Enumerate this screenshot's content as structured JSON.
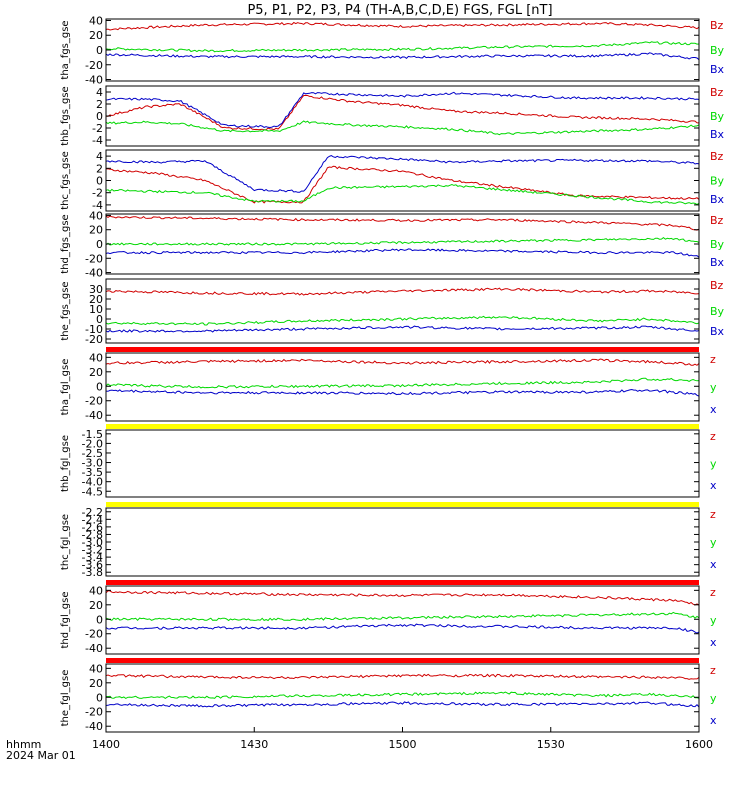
{
  "title": "P5, P1, P2, P3, P4 (TH-A,B,C,D,E) FGS, FGL [nT]",
  "footer": {
    "time_label": "hhmm",
    "date_label": "2024 Mar 01"
  },
  "colors": {
    "z": "#d00000",
    "y": "#00d800",
    "x": "#0000c8",
    "flag_red": "#ff0000",
    "flag_yellow": "#ffff00"
  },
  "chart_data": {
    "type": "line",
    "xaxis": {
      "unit": "hhmm",
      "range": [
        "1400",
        "1600"
      ],
      "ticks": [
        "1400",
        "1430",
        "1500",
        "1530",
        "1600"
      ]
    },
    "panels": [
      {
        "ylabel": "tha_fgs_gse",
        "ylim": [
          -42,
          42
        ],
        "ticks": [
          40,
          20,
          0,
          -20,
          -40
        ],
        "tick_labels": [
          "40",
          "20",
          "0",
          "-20",
          "-40"
        ],
        "legend": [
          "Bz",
          "By",
          "Bx"
        ],
        "flag": "none",
        "series": [
          {
            "name": "Bz",
            "level": 33,
            "noise": 1.5,
            "x": [
              0,
              20,
              40,
              60,
              80,
              100,
              110,
              120
            ],
            "y": [
              28,
              34,
              36,
              32,
              34,
              36,
              34,
              30
            ]
          },
          {
            "name": "By",
            "level": 2,
            "noise": 1.5,
            "x": [
              0,
              20,
              40,
              60,
              80,
              100,
              110,
              120
            ],
            "y": [
              2,
              -1,
              0,
              1,
              4,
              6,
              10,
              8
            ]
          },
          {
            "name": "Bx",
            "level": -8,
            "noise": 1.5,
            "x": [
              0,
              20,
              40,
              60,
              80,
              100,
              110,
              120
            ],
            "y": [
              -6,
              -9,
              -9,
              -10,
              -8,
              -8,
              -5,
              -12
            ]
          }
        ]
      },
      {
        "ylabel": "thb_fgs_gse",
        "ylim": [
          -5,
          5
        ],
        "ticks": [
          4,
          2,
          0,
          -2,
          -4
        ],
        "tick_labels": [
          "4",
          "2",
          "0",
          "-2",
          "-4"
        ],
        "legend": [
          "Bz",
          "By",
          "Bx"
        ],
        "flag": "none",
        "series": [
          {
            "name": "Bz",
            "x": [
              0,
              8,
              15,
              24,
              35,
              40,
              50,
              60,
              70,
              80,
              95,
              110,
              120
            ],
            "y": [
              0,
              1.5,
              2.0,
              -2.0,
              -2.2,
              3.4,
              2.4,
              1.8,
              0.8,
              0.5,
              -0.2,
              -0.5,
              -1.0
            ]
          },
          {
            "name": "By",
            "x": [
              0,
              8,
              15,
              24,
              35,
              40,
              50,
              60,
              70,
              80,
              95,
              110,
              120
            ],
            "y": [
              -1.2,
              -1.0,
              -1.3,
              -2.5,
              -2.5,
              -1.0,
              -1.5,
              -1.8,
              -2.2,
              -3.0,
              -2.6,
              -2.2,
              -1.6
            ]
          },
          {
            "name": "Bx",
            "x": [
              0,
              8,
              15,
              24,
              35,
              40,
              50,
              60,
              70,
              80,
              95,
              110,
              120
            ],
            "y": [
              2.8,
              2.8,
              2.5,
              -1.6,
              -1.8,
              3.8,
              3.6,
              3.3,
              3.8,
              3.5,
              3.0,
              3.0,
              2.8
            ]
          }
        ]
      },
      {
        "ylabel": "thc_fgs_gse",
        "ylim": [
          -5,
          5
        ],
        "ticks": [
          4,
          2,
          0,
          -2,
          -4
        ],
        "tick_labels": [
          "4",
          "2",
          "0",
          "-2",
          "-4"
        ],
        "legend": [
          "Bz",
          "By",
          "Bx"
        ],
        "flag": "none",
        "series": [
          {
            "name": "Bz",
            "x": [
              0,
              10,
              20,
              30,
              40,
              45,
              60,
              70,
              80,
              95,
              110,
              120
            ],
            "y": [
              1.8,
              1.2,
              0.0,
              -3.5,
              -3.5,
              2.2,
              1.5,
              0.0,
              -1.0,
              -2.5,
              -2.8,
              -3.0
            ]
          },
          {
            "name": "By",
            "x": [
              0,
              10,
              20,
              30,
              40,
              45,
              60,
              70,
              80,
              95,
              110,
              120
            ],
            "y": [
              -1.6,
              -1.8,
              -2.0,
              -3.4,
              -3.4,
              -1.2,
              -1.0,
              -0.8,
              -1.5,
              -2.5,
              -3.5,
              -3.8
            ]
          },
          {
            "name": "Bx",
            "x": [
              0,
              10,
              20,
              30,
              40,
              45,
              60,
              70,
              80,
              95,
              110,
              120
            ],
            "y": [
              3.2,
              3.0,
              3.2,
              -1.5,
              -1.8,
              4.0,
              3.5,
              3.0,
              3.2,
              3.3,
              3.2,
              2.8
            ]
          }
        ]
      },
      {
        "ylabel": "thd_fgs_gse",
        "ylim": [
          -42,
          42
        ],
        "ticks": [
          40,
          20,
          0,
          -20,
          -40
        ],
        "tick_labels": [
          "40",
          "20",
          "0",
          "-20",
          "-40"
        ],
        "legend": [
          "Bz",
          "By",
          "Bx"
        ],
        "flag": "none",
        "series": [
          {
            "name": "Bz",
            "x": [
              0,
              20,
              40,
              60,
              80,
              100,
              115,
              120
            ],
            "y": [
              38,
              36,
              34,
              33,
              34,
              30,
              26,
              20
            ]
          },
          {
            "name": "By",
            "x": [
              0,
              20,
              40,
              60,
              80,
              100,
              115,
              120
            ],
            "y": [
              0,
              0,
              0,
              2,
              4,
              6,
              8,
              2
            ]
          },
          {
            "name": "Bx",
            "x": [
              0,
              20,
              40,
              60,
              80,
              100,
              115,
              120
            ],
            "y": [
              -12,
              -12,
              -12,
              -8,
              -10,
              -12,
              -12,
              -18
            ]
          }
        ]
      },
      {
        "ylabel": "the_fgs_gse",
        "ylim": [
          -24,
          40
        ],
        "ticks": [
          30,
          20,
          10,
          0,
          -10,
          -20
        ],
        "tick_labels": [
          "30",
          "20",
          "10",
          "0",
          "-10",
          "-20"
        ],
        "legend": [
          "Bz",
          "By",
          "Bx"
        ],
        "flag": "none",
        "series": [
          {
            "name": "Bz",
            "x": [
              0,
              20,
              40,
              60,
              80,
              100,
              110,
              120
            ],
            "y": [
              28,
              26,
              25,
              28,
              30,
              27,
              28,
              26
            ]
          },
          {
            "name": "By",
            "x": [
              0,
              20,
              40,
              60,
              80,
              100,
              110,
              120
            ],
            "y": [
              -4,
              -5,
              -2,
              0,
              2,
              -2,
              0,
              -4
            ]
          },
          {
            "name": "Bx",
            "x": [
              0,
              20,
              40,
              60,
              80,
              100,
              110,
              120
            ],
            "y": [
              -12,
              -12,
              -10,
              -8,
              -10,
              -9,
              -8,
              -12
            ]
          }
        ]
      },
      {
        "ylabel": "tha_fgl_gse",
        "ylim": [
          -48,
          46
        ],
        "ticks": [
          40,
          20,
          0,
          -20,
          -40
        ],
        "tick_labels": [
          "40",
          "20",
          "0",
          "-20",
          "-40"
        ],
        "legend": [
          "z",
          "y",
          "x"
        ],
        "flag": "red",
        "series": [
          {
            "name": "z",
            "x": [
              0,
              20,
              40,
              60,
              80,
              100,
              110,
              120
            ],
            "y": [
              32,
              34,
              36,
              32,
              34,
              36,
              34,
              30
            ]
          },
          {
            "name": "y",
            "x": [
              0,
              20,
              40,
              60,
              80,
              100,
              110,
              120
            ],
            "y": [
              2,
              -1,
              0,
              1,
              4,
              6,
              10,
              8
            ]
          },
          {
            "name": "x",
            "x": [
              0,
              20,
              40,
              60,
              80,
              100,
              110,
              120
            ],
            "y": [
              -6,
              -9,
              -9,
              -10,
              -8,
              -8,
              -5,
              -12
            ]
          }
        ]
      },
      {
        "ylabel": "thb_fgl_gse",
        "ylim": [
          -4.8,
          -1.3
        ],
        "ticks": [
          -1.5,
          -2.0,
          -2.5,
          -3.0,
          -3.5,
          -4.0,
          -4.5
        ],
        "tick_labels": [
          "-1.5",
          "-2.0",
          "-2.5",
          "-3.0",
          "-3.5",
          "-4.0",
          "-4.5"
        ],
        "legend": [
          "z",
          "y",
          "x"
        ],
        "flag": "yellow",
        "series": []
      },
      {
        "ylabel": "thc_fgl_gse",
        "ylim": [
          -3.9,
          -2.1
        ],
        "ticks": [
          -2.2,
          -2.4,
          -2.6,
          -2.8,
          -3.0,
          -3.2,
          -3.4,
          -3.6,
          -3.8
        ],
        "tick_labels": [
          "-2.2",
          "-2.4",
          "-2.6",
          "-2.8",
          "-3.0",
          "-3.2",
          "-3.4",
          "-3.6",
          "-3.8"
        ],
        "legend": [
          "z",
          "y",
          "x"
        ],
        "flag": "yellow",
        "series": []
      },
      {
        "ylabel": "thd_fgl_gse",
        "ylim": [
          -48,
          46
        ],
        "ticks": [
          40,
          20,
          0,
          -20,
          -40
        ],
        "tick_labels": [
          "40",
          "20",
          "0",
          "-20",
          "-40"
        ],
        "legend": [
          "z",
          "y",
          "x"
        ],
        "flag": "red",
        "series": [
          {
            "name": "z",
            "x": [
              0,
              20,
              40,
              60,
              80,
              100,
              115,
              120
            ],
            "y": [
              38,
              36,
              34,
              33,
              34,
              30,
              26,
              20
            ]
          },
          {
            "name": "y",
            "x": [
              0,
              20,
              40,
              60,
              80,
              100,
              115,
              120
            ],
            "y": [
              0,
              0,
              0,
              2,
              4,
              6,
              8,
              2
            ]
          },
          {
            "name": "x",
            "x": [
              0,
              20,
              40,
              60,
              80,
              100,
              115,
              120
            ],
            "y": [
              -12,
              -12,
              -12,
              -8,
              -10,
              -12,
              -12,
              -18
            ]
          }
        ]
      },
      {
        "ylabel": "the_fgl_gse",
        "ylim": [
          -48,
          46
        ],
        "ticks": [
          40,
          20,
          0,
          -20,
          -40
        ],
        "tick_labels": [
          "40",
          "20",
          "0",
          "-20",
          "-40"
        ],
        "legend": [
          "z",
          "y",
          "x"
        ],
        "flag": "red",
        "series": [
          {
            "name": "z",
            "x": [
              0,
              20,
              40,
              60,
              80,
              100,
              110,
              120
            ],
            "y": [
              30,
              28,
              27,
              30,
              30,
              28,
              28,
              26
            ]
          },
          {
            "name": "y",
            "x": [
              0,
              20,
              40,
              60,
              80,
              100,
              110,
              120
            ],
            "y": [
              0,
              0,
              2,
              4,
              6,
              2,
              4,
              0
            ]
          },
          {
            "name": "x",
            "x": [
              0,
              20,
              40,
              60,
              80,
              100,
              110,
              120
            ],
            "y": [
              -10,
              -12,
              -10,
              -8,
              -10,
              -9,
              -8,
              -12
            ]
          }
        ]
      }
    ]
  }
}
